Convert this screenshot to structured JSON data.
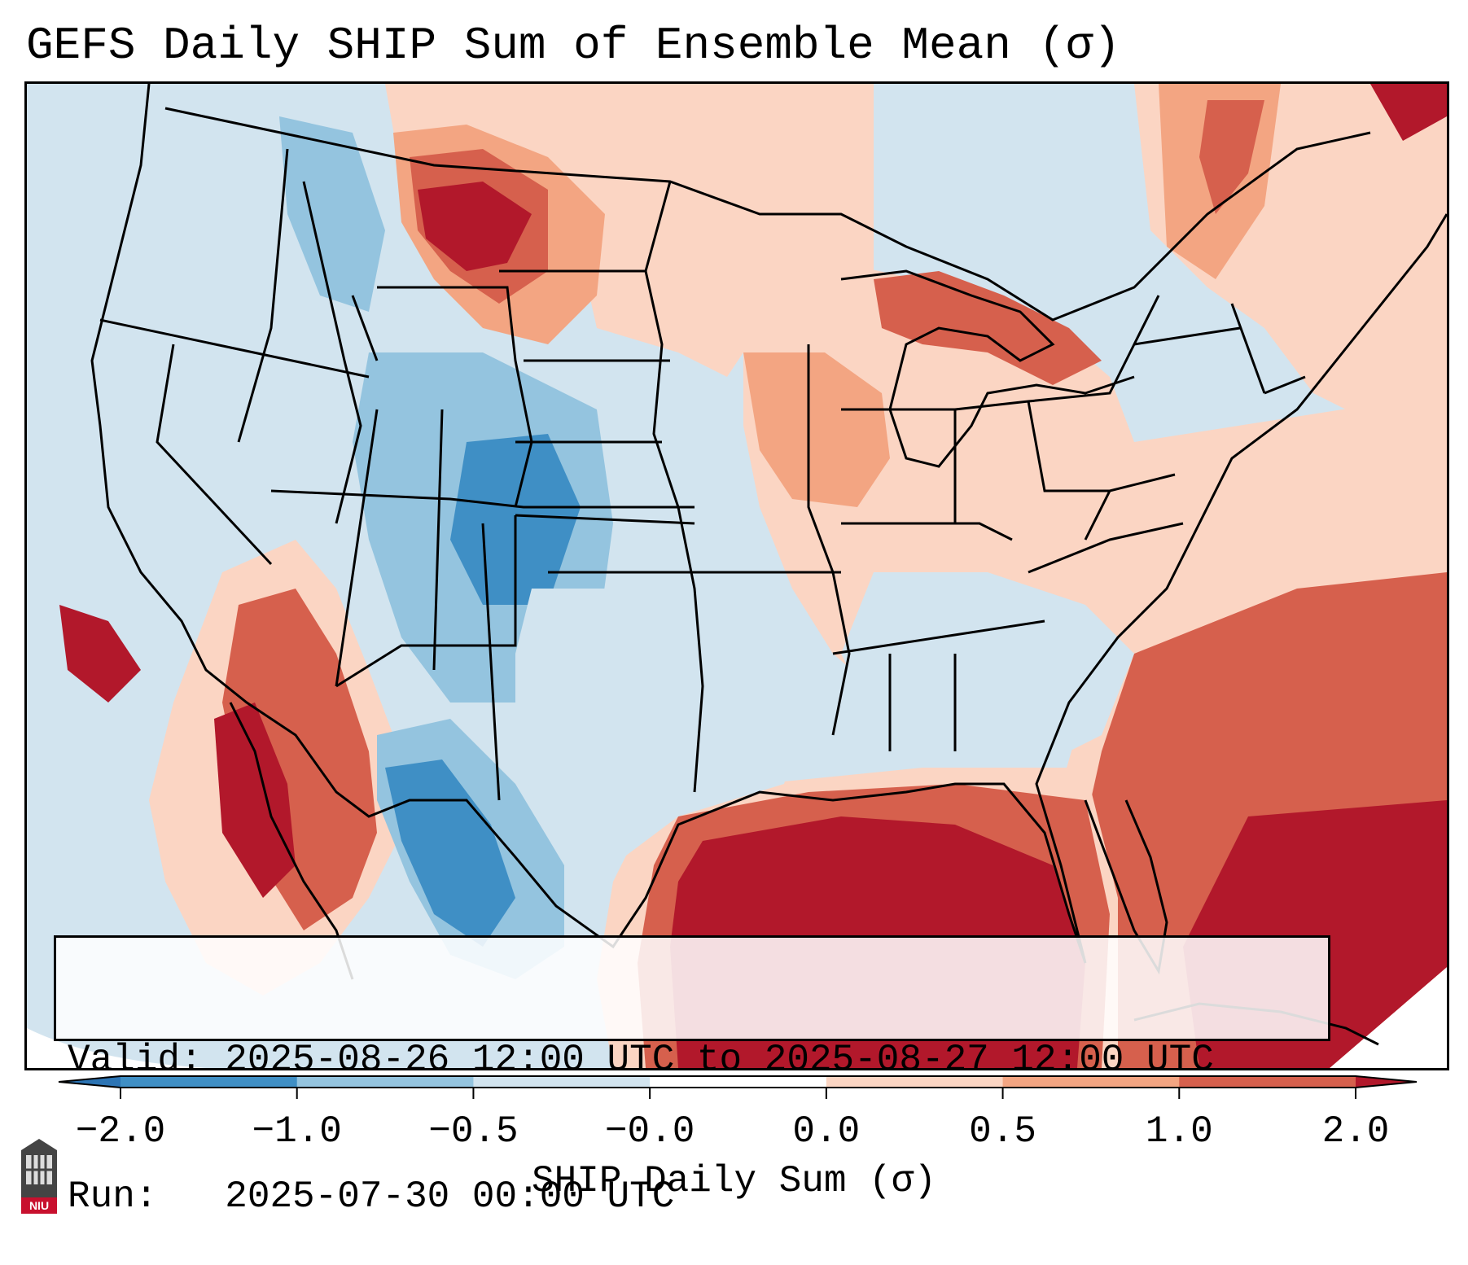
{
  "title": "GEFS Daily SHIP Sum of Ensemble Mean (σ)",
  "map": {
    "subject": "Contiguous United States with state borders, Gulf of Mexico and Caribbean",
    "palette": {
      "below_-2.0": "#2c74b4",
      "-2.0_to_-1.0": "#3f8fc5",
      "-1.0_to_-0.5": "#94c4df",
      "-0.5_to_0.0": "#d2e4ef",
      "0.0": "#ffffff",
      "0.0_to_0.5": "#fbd5c3",
      "0.5_to_1.0": "#f3a582",
      "1.0_to_2.0": "#d6604d",
      "above_2.0": "#b2182b"
    },
    "regions": [
      {
        "name": "montana-wyoming-max",
        "category": "above_2.0"
      },
      {
        "name": "upper-great-lakes",
        "category": "1.0_to_2.0"
      },
      {
        "name": "southwest-desert",
        "category": "1.0_to_2.0"
      },
      {
        "name": "gulf-of-mexico",
        "category": "above_2.0"
      },
      {
        "name": "western-atlantic",
        "category": "1.0_to_2.0"
      },
      {
        "name": "four-corners-rockies",
        "category": "-1.0_to_-0.5"
      },
      {
        "name": "sierra-madre-occidental",
        "category": "-2.0_to_-1.0"
      }
    ]
  },
  "info": {
    "valid_line": "Valid: 2025-08-26 12:00 UTC to 2025-08-27 12:00 UTC",
    "run_line": "Run:   2025-07-30 00:00 UTC"
  },
  "colorbar": {
    "ticks": [
      "−2.0",
      "−1.0",
      "−0.5",
      "−0.0",
      "0.0",
      "0.5",
      "1.0",
      "2.0"
    ],
    "colors": [
      "#2c74b4",
      "#3f8fc5",
      "#94c4df",
      "#d2e4ef",
      "#ffffff",
      "#fbd5c3",
      "#f3a582",
      "#d6604d",
      "#b2182b"
    ],
    "label": "SHIP Daily Sum (σ)"
  },
  "logo": {
    "text": "NIU",
    "name": "Northern Illinois University"
  }
}
